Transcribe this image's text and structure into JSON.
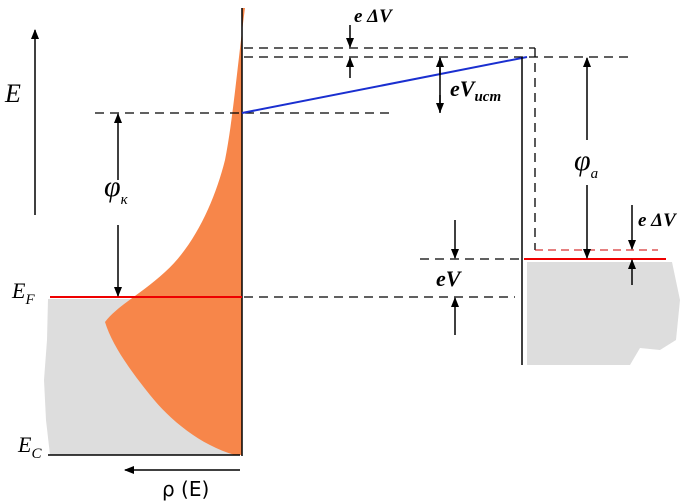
{
  "labels": {
    "energy_axis": "E",
    "fermi_level": {
      "main": "E",
      "sub": "F"
    },
    "conduction_edge": {
      "main": "E",
      "sub": "C"
    },
    "dos_axis": "ρ (E)",
    "delta_v_top": "e ΔV",
    "source_voltage": {
      "main": "eV",
      "sub": "ист"
    },
    "cathode_work_function": {
      "main": "φ",
      "sub": "к"
    },
    "anode_work_function": {
      "main": "φ",
      "sub": "a"
    },
    "bias": "eV",
    "delta_v_right": "e ΔV"
  }
}
